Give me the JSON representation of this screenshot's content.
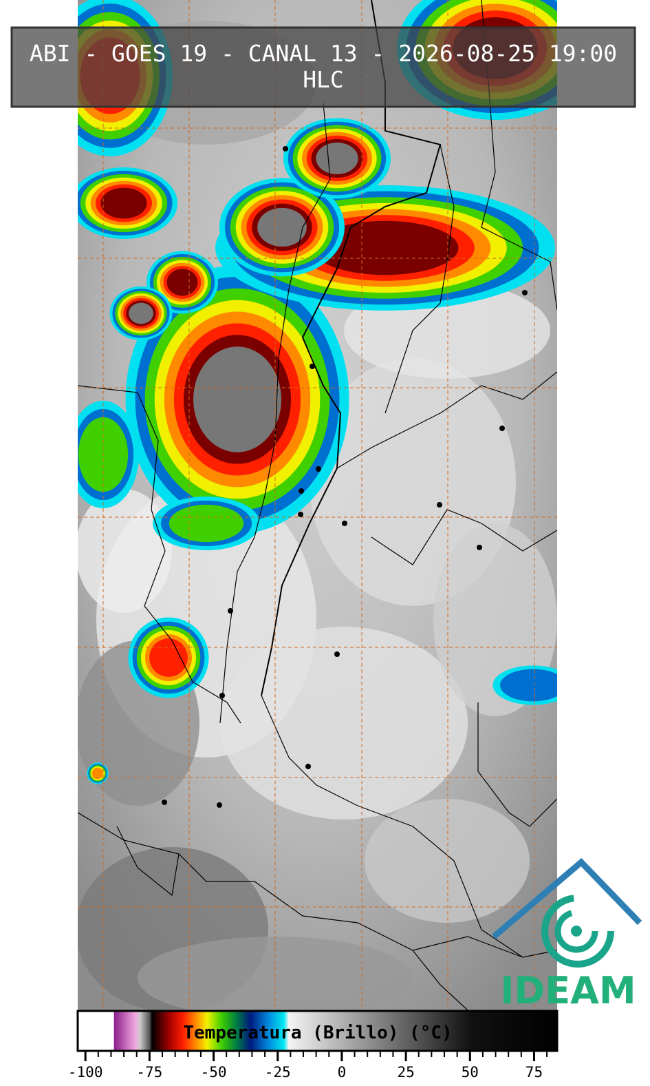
{
  "header": {
    "title": "ABI - GOES 19 - CANAL 13 - 2026-08-25 19:00",
    "subtitle": "HLC"
  },
  "colorbar": {
    "label": "Temperatura (Brillo) (°C)",
    "xlim": [
      -103,
      84
    ],
    "xticks": [
      -100,
      -75,
      -50,
      -25,
      0,
      25,
      50,
      75
    ]
  },
  "logo": {
    "text": "IDEAM"
  }
}
